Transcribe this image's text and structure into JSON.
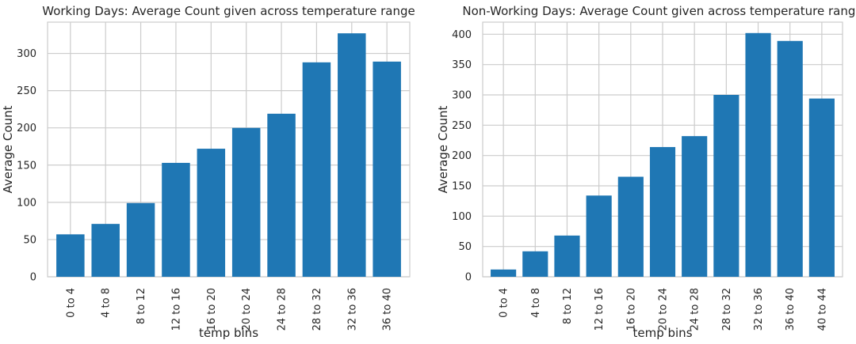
{
  "chart_data": [
    {
      "type": "bar",
      "title": "Working Days: Average Count given across temperature range",
      "xlabel": "temp bins",
      "ylabel": "Average Count",
      "categories": [
        "0 to 4",
        "4 to 8",
        "8 to 12",
        "12 to 16",
        "16 to 20",
        "20 to 24",
        "24 to 28",
        "28 to 32",
        "32 to 36",
        "36 to 40"
      ],
      "values": [
        57,
        71,
        99,
        153,
        172,
        200,
        219,
        288,
        327,
        289
      ],
      "ylim": [
        0,
        342
      ],
      "yticks": [
        0,
        50,
        100,
        150,
        200,
        250,
        300
      ],
      "grid": true,
      "bar_color": "#1f77b4"
    },
    {
      "type": "bar",
      "title": "Non-Working Days: Average Count given across temperature range",
      "xlabel": "temp bins",
      "ylabel": "Average Count",
      "categories": [
        "0 to 4",
        "4 to 8",
        "8 to 12",
        "12 to 16",
        "16 to 20",
        "20 to 24",
        "24 to 28",
        "28 to 32",
        "32 to 36",
        "36 to 40",
        "40 to 44"
      ],
      "values": [
        12,
        42,
        68,
        134,
        165,
        214,
        232,
        300,
        402,
        389,
        294
      ],
      "ylim": [
        0,
        420
      ],
      "yticks": [
        0,
        50,
        100,
        150,
        200,
        250,
        300,
        350,
        400
      ],
      "grid": true,
      "bar_color": "#1f77b4"
    }
  ]
}
